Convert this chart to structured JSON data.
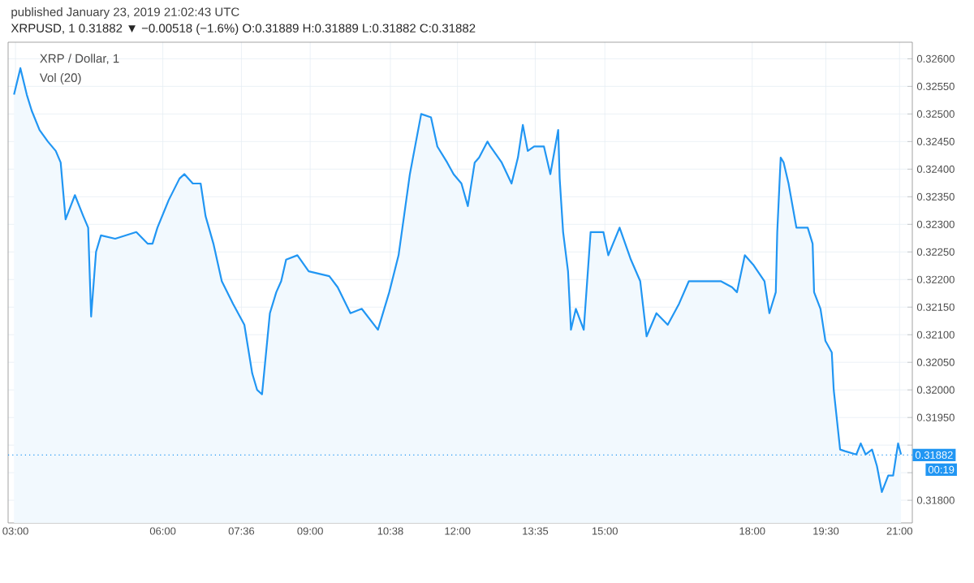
{
  "chart_data": {
    "type": "area",
    "title": "XRP / Dollar, 1",
    "subtitle": "XRPUSD, 1  0.31882 ▼ −0.00518 (−1.6%) O:0.31889 H:0.31889 L:0.31882 C:0.31882",
    "annotations": [
      "published January 23, 2019 21:02:43 UTC",
      "Vol (20)",
      "00:19"
    ],
    "x": [
      2.97,
      3.1,
      3.23,
      3.33,
      3.49,
      3.66,
      3.82,
      3.92,
      4.02,
      4.21,
      4.38,
      4.48,
      4.54,
      4.64,
      4.74,
      5.03,
      5.46,
      5.69,
      5.79,
      5.89,
      6.12,
      6.34,
      6.44,
      6.61,
      6.77,
      6.87,
      7.03,
      7.2,
      7.43,
      7.66,
      7.82,
      7.92,
      8.02,
      8.18,
      8.31,
      8.41,
      8.51,
      8.74,
      8.97,
      9.39,
      9.56,
      9.82,
      10.05,
      10.38,
      10.61,
      10.8,
      11.03,
      11.26,
      11.46,
      11.59,
      11.79,
      11.92,
      12.08,
      12.21,
      12.35,
      12.44,
      12.61,
      12.67,
      12.9,
      13.1,
      13.23,
      13.33,
      13.43,
      13.56,
      13.76,
      13.89,
      14.05,
      14.08,
      14.15,
      14.25,
      14.31,
      14.41,
      14.57,
      14.71,
      14.97,
      15.07,
      15.3,
      15.53,
      15.72,
      15.85,
      16.05,
      16.28,
      16.51,
      16.71,
      17.03,
      17.36,
      17.59,
      17.69,
      17.85,
      18.02,
      18.25,
      18.35,
      18.48,
      18.51,
      18.58,
      18.64,
      18.74,
      18.9,
      19.13,
      19.23,
      19.26,
      19.39,
      19.49,
      19.62,
      19.66,
      19.79,
      19.89,
      20.12,
      20.21,
      20.31,
      20.44,
      20.54,
      20.64,
      20.77,
      20.87,
      20.97,
      21.03
    ],
    "series": [
      {
        "color": "#2196f3",
        "values": [
          0.32535,
          0.32583,
          0.32535,
          0.32506,
          0.32471,
          0.3245,
          0.32433,
          0.32412,
          0.32309,
          0.32353,
          0.32315,
          0.32294,
          0.32133,
          0.3225,
          0.3228,
          0.32274,
          0.32286,
          0.32265,
          0.32265,
          0.32294,
          0.32344,
          0.32383,
          0.32391,
          0.32374,
          0.32374,
          0.32315,
          0.32265,
          0.32197,
          0.32156,
          0.32118,
          0.3203,
          0.32,
          0.31992,
          0.32139,
          0.32177,
          0.32197,
          0.32236,
          0.32244,
          0.32215,
          0.32206,
          0.32186,
          0.32139,
          0.32147,
          0.32109,
          0.32177,
          0.32244,
          0.32391,
          0.325,
          0.32494,
          0.32441,
          0.32412,
          0.32391,
          0.32374,
          0.32333,
          0.32412,
          0.32421,
          0.3245,
          0.32441,
          0.32412,
          0.32374,
          0.32421,
          0.3248,
          0.32433,
          0.32441,
          0.32441,
          0.32391,
          0.32471,
          0.32383,
          0.32286,
          0.32215,
          0.32109,
          0.32147,
          0.32109,
          0.32286,
          0.32286,
          0.32244,
          0.32294,
          0.32236,
          0.32197,
          0.32097,
          0.32139,
          0.32118,
          0.32156,
          0.32197,
          0.32197,
          0.32197,
          0.32186,
          0.32177,
          0.32244,
          0.32227,
          0.32197,
          0.32139,
          0.32177,
          0.32286,
          0.32421,
          0.32412,
          0.32374,
          0.32294,
          0.32294,
          0.32265,
          0.32177,
          0.32147,
          0.32089,
          0.32068,
          0.32,
          0.31892,
          0.31889,
          0.31883,
          0.31903,
          0.31883,
          0.31892,
          0.31862,
          0.31815,
          0.31845,
          0.31845,
          0.31903,
          0.31883
        ]
      }
    ],
    "xlim": [
      2.85,
      21.26
    ],
    "ylim": [
      0.31759,
      0.3263
    ],
    "xticks": [
      {
        "value": 3,
        "label": "03:00"
      },
      {
        "value": 6,
        "label": "06:00"
      },
      {
        "value": 7.6,
        "label": "07:36"
      },
      {
        "value": 9,
        "label": "09:00"
      },
      {
        "value": 10.633,
        "label": "10:38"
      },
      {
        "value": 12,
        "label": "12:00"
      },
      {
        "value": 13.583,
        "label": "13:35"
      },
      {
        "value": 15,
        "label": "15:00"
      },
      {
        "value": 18,
        "label": "18:00"
      },
      {
        "value": 19.5,
        "label": "19:30"
      },
      {
        "value": 21,
        "label": "21:00"
      }
    ],
    "yticks": [
      {
        "value": 0.318,
        "label": "0.31800"
      },
      {
        "value": 0.3185,
        "label": null
      },
      {
        "value": 0.319,
        "label": null
      },
      {
        "value": 0.3195,
        "label": "0.31950"
      },
      {
        "value": 0.32,
        "label": "0.32000"
      },
      {
        "value": 0.3205,
        "label": "0.32050"
      },
      {
        "value": 0.321,
        "label": "0.32100"
      },
      {
        "value": 0.3215,
        "label": "0.32150"
      },
      {
        "value": 0.322,
        "label": "0.32200"
      },
      {
        "value": 0.3225,
        "label": "0.32250"
      },
      {
        "value": 0.323,
        "label": "0.32300"
      },
      {
        "value": 0.3235,
        "label": "0.32350"
      },
      {
        "value": 0.324,
        "label": "0.32400"
      },
      {
        "value": 0.3245,
        "label": "0.32450"
      },
      {
        "value": 0.325,
        "label": "0.32500"
      },
      {
        "value": 0.3255,
        "label": "0.32550"
      },
      {
        "value": 0.326,
        "label": "0.32600"
      }
    ],
    "grid": true,
    "ref_lines": [
      {
        "axis": "y",
        "value": 0.31882,
        "label": "0.31882",
        "color": "#2196f3",
        "line_style": "dotted"
      }
    ]
  }
}
